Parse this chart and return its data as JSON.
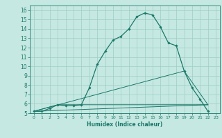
{
  "xlabel": "Humidex (Indice chaleur)",
  "bg_color": "#c5e8e2",
  "grid_color": "#9ecdc5",
  "line_color": "#1a7868",
  "xlim": [
    -0.5,
    23.5
  ],
  "ylim": [
    5,
    16.5
  ],
  "xticks": [
    0,
    1,
    2,
    3,
    4,
    5,
    6,
    7,
    8,
    9,
    10,
    11,
    12,
    13,
    14,
    15,
    16,
    17,
    18,
    19,
    20,
    21,
    22,
    23
  ],
  "yticks": [
    5,
    6,
    7,
    8,
    9,
    10,
    11,
    12,
    13,
    14,
    15,
    16
  ],
  "series1_x": [
    0,
    1,
    2,
    3,
    4,
    5,
    6,
    7,
    8,
    9,
    10,
    11,
    12,
    13,
    14,
    15,
    16,
    17,
    18,
    19,
    20,
    21,
    22
  ],
  "series1_y": [
    5.2,
    5.2,
    5.5,
    5.9,
    5.8,
    5.8,
    5.9,
    7.7,
    10.2,
    11.6,
    12.8,
    13.2,
    14.0,
    15.3,
    15.7,
    15.5,
    14.2,
    12.5,
    12.2,
    9.5,
    7.7,
    6.5,
    5.2
  ],
  "series2_x": [
    0,
    3,
    22
  ],
  "series2_y": [
    5.2,
    5.9,
    5.9
  ],
  "series3_x": [
    0,
    19,
    22
  ],
  "series3_y": [
    5.2,
    9.5,
    5.9
  ],
  "series4_x": [
    0,
    22
  ],
  "series4_y": [
    5.2,
    5.9
  ]
}
